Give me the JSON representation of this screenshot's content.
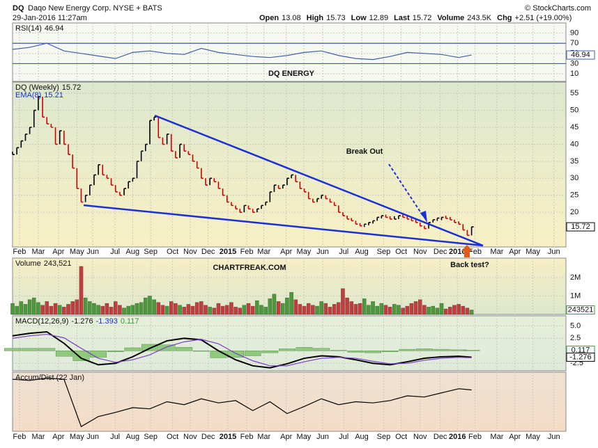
{
  "header": {
    "symbol": "DQ",
    "name": "Daqo New Energy Corp. NYSE + BATS",
    "copyright": "© StockCharts.com",
    "date": "29-Jan-2016 11:27am",
    "quote": [
      {
        "label": "Open",
        "value": 13.08
      },
      {
        "label": "High",
        "value": 15.73
      },
      {
        "label": "Low",
        "value": 12.89
      },
      {
        "label": "Last",
        "value": 15.72
      },
      {
        "label": "Volume",
        "value": "243.5K"
      },
      {
        "label": "Chg",
        "value": "+2.51 (+19.00%)"
      }
    ]
  },
  "chart_data": [
    {
      "type": "line",
      "title": "RSI(14)",
      "color": "#3f5fa8",
      "levels": [
        30,
        70
      ],
      "x": [
        0,
        4,
        8,
        12,
        16,
        20,
        24,
        28,
        32,
        36,
        40,
        44,
        48,
        52,
        56,
        60,
        64,
        68,
        72,
        76,
        80,
        84,
        88,
        92,
        96,
        100,
        104,
        107
      ],
      "values": [
        58,
        62,
        70,
        55,
        50,
        45,
        40,
        52,
        55,
        50,
        48,
        60,
        52,
        48,
        44,
        42,
        46,
        52,
        55,
        46,
        40,
        38,
        44,
        52,
        50,
        48,
        42,
        46.94
      ],
      "ylim": [
        -5,
        110
      ],
      "yticks": [
        10,
        30,
        50,
        70,
        90
      ]
    },
    {
      "type": "ohlc",
      "title": "DQ (Weekly)",
      "ema_label": "EMA(8)",
      "ema_value": 15.21,
      "colors": {
        "up": "#000000",
        "down": "#cc0000"
      },
      "annotations": [
        {
          "text": "DQ ENERGY",
          "color": "#e8501c"
        },
        {
          "text": "Break Out",
          "color": "#e05a1a"
        },
        {
          "text": "Back test?",
          "color": "#e05a1a"
        }
      ],
      "x": [
        0,
        1,
        2,
        3,
        4,
        5,
        6,
        7,
        8,
        9,
        10,
        11,
        12,
        13,
        14,
        15,
        16,
        17,
        18,
        19,
        20,
        21,
        22,
        23,
        24,
        25,
        26,
        27,
        28,
        29,
        30,
        31,
        32,
        33,
        34,
        35,
        36,
        37,
        38,
        39,
        40,
        41,
        42,
        43,
        44,
        45,
        46,
        47,
        48,
        49,
        50,
        51,
        52,
        53,
        54,
        55,
        56,
        57,
        58,
        59,
        60,
        61,
        62,
        63,
        64,
        65,
        66,
        67,
        68,
        69,
        70,
        71,
        72,
        73,
        74,
        75,
        76,
        77,
        78,
        79,
        80,
        81,
        82,
        83,
        84,
        85,
        86,
        87,
        88,
        89,
        90,
        91,
        92,
        93,
        94,
        95,
        96,
        97,
        98,
        99,
        100,
        101,
        102,
        103,
        104,
        105,
        106,
        107
      ],
      "values": [
        37,
        39,
        41,
        43,
        45,
        50,
        54,
        48,
        46,
        45,
        40,
        44,
        40,
        37,
        33,
        27,
        23,
        25,
        28,
        31,
        34,
        31,
        30,
        28,
        26,
        25,
        27,
        29,
        30,
        35,
        38,
        40,
        47,
        48,
        42,
        40,
        43,
        38,
        36,
        40,
        38,
        37,
        35,
        33,
        30,
        28,
        30,
        29,
        27,
        25,
        23,
        22,
        21,
        20,
        22,
        21,
        20,
        21,
        22,
        23,
        26,
        28,
        27,
        28,
        30,
        31,
        29,
        27,
        26,
        24,
        23,
        24,
        25,
        24,
        23,
        22,
        20,
        19,
        18,
        17.5,
        16.5,
        16,
        16.5,
        17,
        17.5,
        18.5,
        19,
        18.5,
        18,
        18,
        19,
        18.5,
        18,
        17.5,
        17,
        16,
        15.2,
        17,
        17.8,
        18.3,
        18.5,
        18.2,
        17.8,
        17,
        16.5,
        14.8,
        13.21,
        15.72
      ],
      "xlim": [
        0,
        129
      ],
      "xticks": [
        {
          "value": 1.6,
          "label": "Feb"
        },
        {
          "value": 6.0,
          "label": "Mar"
        },
        {
          "value": 10.7,
          "label": "Apr"
        },
        {
          "value": 15.0,
          "label": "May"
        },
        {
          "value": 18.7,
          "label": "Jun"
        },
        {
          "value": 23.9,
          "label": "Jul"
        },
        {
          "value": 28.0,
          "label": "Aug"
        },
        {
          "value": 32.2,
          "label": "Sep"
        },
        {
          "value": 37.3,
          "label": "Oct"
        },
        {
          "value": 41.4,
          "label": "Nov"
        },
        {
          "value": 45.6,
          "label": "Dec"
        },
        {
          "value": 50.2,
          "label": "2015"
        },
        {
          "value": 54.6,
          "label": "Feb"
        },
        {
          "value": 58.6,
          "label": "Mar"
        },
        {
          "value": 63.8,
          "label": "Apr"
        },
        {
          "value": 67.9,
          "label": "May"
        },
        {
          "value": 72.3,
          "label": "Jun"
        },
        {
          "value": 77.2,
          "label": "Jul"
        },
        {
          "value": 81.4,
          "label": "Aug"
        },
        {
          "value": 86.5,
          "label": "Sep"
        },
        {
          "value": 90.6,
          "label": "Oct"
        },
        {
          "value": 95.0,
          "label": "Nov"
        },
        {
          "value": 99.7,
          "label": "Dec"
        },
        {
          "value": 103.7,
          "label": "2016"
        },
        {
          "value": 107.8,
          "label": "Feb"
        },
        {
          "value": 112.9,
          "label": "Mar"
        },
        {
          "value": 117.1,
          "label": "Apr"
        },
        {
          "value": 121.3,
          "label": "May"
        },
        {
          "value": 126.2,
          "label": "Jun"
        }
      ],
      "ylim": [
        9.8,
        58.3
      ],
      "yticks": [
        20,
        25,
        30,
        35,
        40,
        45,
        50,
        55
      ],
      "grid": true
    },
    {
      "type": "bar",
      "title": "Volume",
      "current_label": "243,521",
      "colors": {
        "up": "#4a9a3a",
        "down": "#c43c3c"
      },
      "annotations": [
        {
          "text": "CHARTFREAK.COM",
          "color": "#1a3fd6"
        }
      ],
      "values": [
        600000,
        450000,
        700000,
        550000,
        800000,
        900000,
        650000,
        500000,
        700000,
        450000,
        600000,
        500000,
        400000,
        550000,
        700000,
        800000,
        2600000,
        900000,
        700000,
        600000,
        500000,
        450000,
        600000,
        400000,
        700000,
        500000,
        350000,
        450000,
        500000,
        600000,
        650000,
        900000,
        1000000,
        800000,
        650000,
        500000,
        450000,
        700000,
        600000,
        500000,
        400000,
        550000,
        450000,
        650000,
        700000,
        500000,
        400000,
        350000,
        600000,
        450000,
        500000,
        650000,
        400000,
        350000,
        500000,
        600000,
        450000,
        750000,
        500000,
        400000,
        850000,
        1100000,
        700000,
        600000,
        900000,
        1200000,
        800000,
        550000,
        450000,
        600000,
        500000,
        450000,
        700000,
        600000,
        400000,
        550000,
        650000,
        1400000,
        900000,
        700000,
        550000,
        600000,
        850000,
        500000,
        700000,
        450000,
        600000,
        500000,
        400000,
        550000,
        500000,
        350000,
        450000,
        600000,
        700000,
        800000,
        500000,
        400000,
        450000,
        350000,
        600000,
        300000,
        400000,
        500000,
        550000,
        450000,
        350000,
        243521
      ],
      "ylim": [
        0,
        3050000
      ],
      "yticks": [
        {
          "value": 1000000,
          "label": "1M"
        },
        {
          "value": 2000000,
          "label": "2M"
        }
      ]
    },
    {
      "type": "line",
      "title": "MACD(12,26,9)",
      "x": [
        0,
        4,
        8,
        12,
        16,
        20,
        24,
        28,
        32,
        36,
        40,
        44,
        48,
        52,
        56,
        60,
        64,
        68,
        72,
        76,
        80,
        84,
        88,
        92,
        96,
        100,
        104,
        107
      ],
      "series": [
        {
          "name": "MACD",
          "color": "#000000",
          "values": [
            3,
            3.5,
            3.8,
            1.5,
            -1.5,
            -2.8,
            -2.5,
            -1.2,
            0.5,
            2,
            2.5,
            2.2,
            0,
            -1.8,
            -3,
            -3.4,
            -2.6,
            -1.5,
            -1,
            -1.2,
            -1.8,
            -2.5,
            -2.8,
            -2.2,
            -1.5,
            -1.2,
            -1.1,
            -1.276
          ]
        },
        {
          "name": "Signal",
          "color": "#7a3fc8",
          "values": [
            2.5,
            3,
            3.3,
            2.6,
            0.5,
            -1.5,
            -2.3,
            -1.8,
            -0.8,
            0.8,
            1.8,
            2.3,
            1.4,
            -0.5,
            -2,
            -3,
            -3,
            -2.2,
            -1.5,
            -1.3,
            -1.5,
            -2.1,
            -2.6,
            -2.5,
            -1.9,
            -1.5,
            -1.3,
            -1.393
          ]
        },
        {
          "name": "Histogram",
          "color": "#8fc97c",
          "type": "bar",
          "values": [
            0.5,
            0.5,
            0.5,
            -1.1,
            -2,
            -1.3,
            -0.2,
            0.6,
            1.3,
            1.2,
            0.7,
            -0.1,
            -1.4,
            -1.3,
            -1,
            -0.4,
            0.4,
            0.7,
            0.5,
            0.1,
            -0.3,
            -0.4,
            -0.2,
            0.3,
            0.4,
            0.3,
            0.2,
            0.117
          ]
        }
      ],
      "ylim": [
        -4,
        7
      ],
      "yticks": [
        {
          "value": 5,
          "label": "5.0"
        },
        {
          "value": 2.5,
          "label": "2.5"
        },
        -2.5
      ]
    },
    {
      "type": "line",
      "title": "Accum/Dist (22 Jan)",
      "color": "#000000",
      "x": [
        0,
        4,
        8,
        12,
        16,
        20,
        24,
        28,
        32,
        36,
        40,
        44,
        48,
        52,
        56,
        60,
        64,
        68,
        72,
        76,
        80,
        84,
        88,
        92,
        96,
        100,
        104,
        107
      ],
      "values": [
        88,
        86,
        90,
        88,
        8,
        25,
        32,
        40,
        38,
        50,
        45,
        55,
        48,
        52,
        35,
        50,
        30,
        42,
        55,
        45,
        50,
        48,
        52,
        60,
        58,
        65,
        72,
        70
      ],
      "ylim": [
        0,
        100
      ]
    }
  ]
}
